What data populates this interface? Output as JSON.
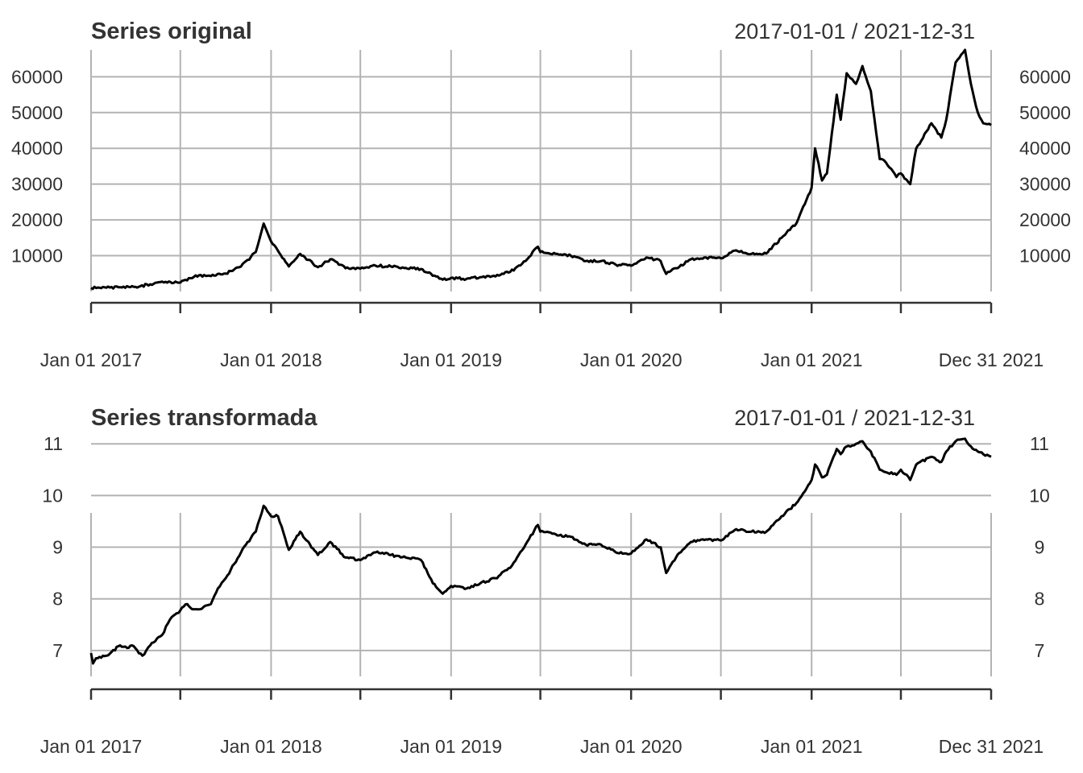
{
  "chart_data": [
    {
      "type": "line",
      "title": "Series original",
      "date_range_label": "2017-01-01 / 2021-12-31",
      "x_tick_labels": [
        "Jan 01 2017",
        "Jan 01 2018",
        "Jan 01 2019",
        "Jan 01 2020",
        "Jan 01 2021",
        "Dec 31 2021"
      ],
      "x_ticks": [
        "2017-01-01",
        "2018-01-01",
        "2019-01-01",
        "2020-01-01",
        "2021-01-01",
        "2021-12-31"
      ],
      "x_range": [
        "2017-01-01",
        "2021-12-31"
      ],
      "y_ticks": [
        10000,
        20000,
        30000,
        40000,
        50000,
        60000
      ],
      "y_tick_labels": [
        "10000",
        "20000",
        "30000",
        "40000",
        "50000",
        "60000"
      ],
      "ylim": [
        0,
        67500
      ],
      "grid": true,
      "series": [
        {
          "color": "#000000",
          "x": [
            "2017-01-01",
            "2017-02-01",
            "2017-03-01",
            "2017-04-01",
            "2017-05-01",
            "2017-06-01",
            "2017-07-01",
            "2017-08-01",
            "2017-09-01",
            "2017-10-01",
            "2017-11-01",
            "2017-12-01",
            "2017-12-17",
            "2018-01-01",
            "2018-02-06",
            "2018-03-01",
            "2018-04-06",
            "2018-05-01",
            "2018-06-01",
            "2018-07-01",
            "2018-08-01",
            "2018-09-01",
            "2018-10-01",
            "2018-11-01",
            "2018-12-15",
            "2019-01-01",
            "2019-02-01",
            "2019-03-01",
            "2019-04-01",
            "2019-05-01",
            "2019-06-01",
            "2019-06-26",
            "2019-07-01",
            "2019-08-01",
            "2019-09-01",
            "2019-10-01",
            "2019-11-01",
            "2019-12-01",
            "2020-01-01",
            "2020-02-01",
            "2020-03-01",
            "2020-03-12",
            "2020-04-01",
            "2020-05-01",
            "2020-06-01",
            "2020-07-01",
            "2020-08-01",
            "2020-09-01",
            "2020-10-01",
            "2020-11-01",
            "2020-12-01",
            "2021-01-01",
            "2021-01-08",
            "2021-01-22",
            "2021-02-01",
            "2021-02-21",
            "2021-03-01",
            "2021-03-13",
            "2021-04-01",
            "2021-04-14",
            "2021-05-01",
            "2021-05-19",
            "2021-06-01",
            "2021-06-22",
            "2021-07-01",
            "2021-07-20",
            "2021-08-01",
            "2021-09-01",
            "2021-09-21",
            "2021-10-01",
            "2021-10-20",
            "2021-11-08",
            "2021-11-20",
            "2021-12-04",
            "2021-12-15",
            "2021-12-31"
          ],
          "values": [
            1000,
            1050,
            1200,
            1300,
            2000,
            2700,
            2500,
            4500,
            4300,
            5000,
            7000,
            11000,
            19000,
            14000,
            7000,
            10500,
            6800,
            9000,
            6500,
            6400,
            7200,
            7000,
            6600,
            6300,
            3300,
            3800,
            3500,
            4000,
            4200,
            5500,
            8500,
            12500,
            11000,
            10500,
            10000,
            8500,
            8500,
            7500,
            7200,
            9500,
            8500,
            4900,
            6500,
            9000,
            9500,
            9300,
            11500,
            10500,
            10600,
            15000,
            19000,
            29000,
            40000,
            31000,
            33000,
            55000,
            48000,
            61000,
            58000,
            63000,
            56000,
            37000,
            36000,
            32000,
            33000,
            30000,
            40000,
            47000,
            43000,
            48000,
            64000,
            67500,
            58000,
            50000,
            47000,
            46500
          ]
        }
      ]
    },
    {
      "type": "line",
      "title": "Series transformada",
      "date_range_label": "2017-01-01 / 2021-12-31",
      "x_tick_labels": [
        "Jan 01 2017",
        "Jan 01 2018",
        "Jan 01 2019",
        "Jan 01 2020",
        "Jan 01 2021",
        "Dec 31 2021"
      ],
      "x_ticks": [
        "2017-01-01",
        "2018-01-01",
        "2019-01-01",
        "2020-01-01",
        "2021-01-01",
        "2021-12-31"
      ],
      "x_range": [
        "2017-01-01",
        "2021-12-31"
      ],
      "y_ticks": [
        7,
        8,
        9,
        10,
        11
      ],
      "y_tick_labels": [
        "7",
        "8",
        "9",
        "10",
        "11"
      ],
      "ylim": [
        6.5,
        11.05
      ],
      "grid": true,
      "series": [
        {
          "color": "#000000",
          "x": [
            "2017-01-01",
            "2017-01-05",
            "2017-01-11",
            "2017-02-01",
            "2017-03-01",
            "2017-03-15",
            "2017-03-25",
            "2017-04-15",
            "2017-05-01",
            "2017-05-25",
            "2017-06-10",
            "2017-07-15",
            "2017-07-25",
            "2017-08-10",
            "2017-09-01",
            "2017-09-15",
            "2017-10-01",
            "2017-11-01",
            "2017-12-01",
            "2017-12-17",
            "2018-01-01",
            "2018-01-15",
            "2018-02-06",
            "2018-03-01",
            "2018-04-06",
            "2018-05-01",
            "2018-06-01",
            "2018-07-01",
            "2018-08-01",
            "2018-09-01",
            "2018-10-01",
            "2018-11-01",
            "2018-11-25",
            "2018-12-15",
            "2019-01-01",
            "2019-02-01",
            "2019-03-01",
            "2019-04-01",
            "2019-05-01",
            "2019-06-01",
            "2019-06-26",
            "2019-07-01",
            "2019-08-01",
            "2019-09-01",
            "2019-10-01",
            "2019-11-01",
            "2019-12-01",
            "2020-01-01",
            "2020-02-01",
            "2020-03-01",
            "2020-03-12",
            "2020-04-01",
            "2020-05-01",
            "2020-06-01",
            "2020-07-01",
            "2020-08-01",
            "2020-09-01",
            "2020-10-01",
            "2020-11-01",
            "2020-12-01",
            "2021-01-01",
            "2021-01-08",
            "2021-01-22",
            "2021-02-01",
            "2021-02-21",
            "2021-03-01",
            "2021-03-13",
            "2021-04-01",
            "2021-04-14",
            "2021-05-01",
            "2021-05-19",
            "2021-06-01",
            "2021-06-22",
            "2021-07-01",
            "2021-07-20",
            "2021-08-01",
            "2021-09-01",
            "2021-09-21",
            "2021-10-01",
            "2021-10-20",
            "2021-11-08",
            "2021-11-20",
            "2021-12-04",
            "2021-12-15",
            "2021-12-31"
          ],
          "values": [
            6.95,
            6.75,
            6.85,
            6.9,
            7.1,
            7.05,
            7.1,
            6.9,
            7.1,
            7.3,
            7.6,
            7.9,
            7.8,
            7.8,
            7.9,
            8.2,
            8.4,
            8.9,
            9.3,
            9.8,
            9.6,
            9.6,
            8.95,
            9.3,
            8.85,
            9.1,
            8.8,
            8.75,
            8.9,
            8.85,
            8.8,
            8.75,
            8.3,
            8.1,
            8.25,
            8.2,
            8.3,
            8.4,
            8.6,
            9.05,
            9.43,
            9.3,
            9.25,
            9.2,
            9.05,
            9.05,
            8.9,
            8.88,
            9.15,
            9.0,
            8.5,
            8.8,
            9.1,
            9.15,
            9.13,
            9.35,
            9.3,
            9.3,
            9.6,
            9.85,
            10.3,
            10.6,
            10.35,
            10.4,
            10.9,
            10.8,
            10.95,
            11.0,
            11.05,
            10.85,
            10.5,
            10.45,
            10.4,
            10.5,
            10.3,
            10.6,
            10.75,
            10.65,
            10.85,
            11.05,
            11.1,
            10.95,
            10.85,
            10.8,
            10.75
          ]
        }
      ]
    }
  ]
}
